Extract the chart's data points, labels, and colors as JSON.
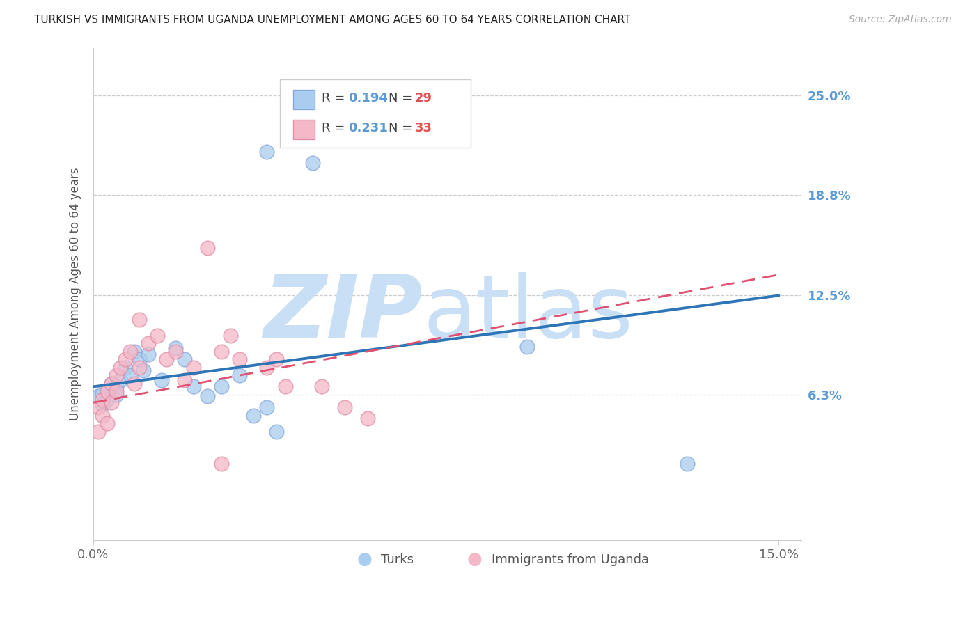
{
  "title": "TURKISH VS IMMIGRANTS FROM UGANDA UNEMPLOYMENT AMONG AGES 60 TO 64 YEARS CORRELATION CHART",
  "source": "Source: ZipAtlas.com",
  "ylabel": "Unemployment Among Ages 60 to 64 years",
  "xlim": [
    0.0,
    0.155
  ],
  "ylim": [
    -0.028,
    0.28
  ],
  "yticks": [
    0.063,
    0.125,
    0.188,
    0.25
  ],
  "ytick_labels": [
    "6.3%",
    "12.5%",
    "18.8%",
    "25.0%"
  ],
  "xtick_labels": [
    "0.0%",
    "15.0%"
  ],
  "grid_color": "#cccccc",
  "background_color": "#ffffff",
  "turks_color": "#aaccee",
  "turks_edge_color": "#88aadd",
  "uganda_color": "#f5b8c8",
  "uganda_edge_color": "#e090a8",
  "turks_R": "0.194",
  "turks_N": "29",
  "uganda_R": "0.231",
  "uganda_N": "33",
  "legend_label_turks": "Turks",
  "legend_label_uganda": "Immigrants from Uganda",
  "right_label_color": "#5b9bd5",
  "r_label_color": "#5b9bd5",
  "n_label_color": "#e05050",
  "turks_line_color": "#2e75b6",
  "uganda_line_color": "#e05070",
  "turks_x": [
    0.001,
    0.002,
    0.002,
    0.003,
    0.003,
    0.004,
    0.005,
    0.005,
    0.006,
    0.007,
    0.008,
    0.009,
    0.01,
    0.011,
    0.012,
    0.015,
    0.018,
    0.02,
    0.022,
    0.025,
    0.028,
    0.032,
    0.035,
    0.038,
    0.04,
    0.095,
    0.13,
    0.038,
    0.048
  ],
  "turks_y": [
    0.062,
    0.064,
    0.057,
    0.06,
    0.065,
    0.07,
    0.068,
    0.063,
    0.072,
    0.08,
    0.075,
    0.09,
    0.085,
    0.078,
    0.088,
    0.072,
    0.092,
    0.085,
    0.068,
    0.062,
    0.068,
    0.075,
    0.05,
    0.055,
    0.04,
    0.093,
    0.02,
    0.215,
    0.208
  ],
  "uganda_x": [
    0.001,
    0.001,
    0.002,
    0.002,
    0.003,
    0.003,
    0.004,
    0.004,
    0.005,
    0.005,
    0.006,
    0.007,
    0.008,
    0.009,
    0.01,
    0.012,
    0.014,
    0.016,
    0.018,
    0.02,
    0.022,
    0.025,
    0.028,
    0.03,
    0.032,
    0.038,
    0.04,
    0.042,
    0.05,
    0.055,
    0.06,
    0.028,
    0.01
  ],
  "uganda_y": [
    0.055,
    0.04,
    0.06,
    0.05,
    0.065,
    0.045,
    0.07,
    0.058,
    0.075,
    0.065,
    0.08,
    0.085,
    0.09,
    0.07,
    0.08,
    0.095,
    0.1,
    0.085,
    0.09,
    0.072,
    0.08,
    0.155,
    0.09,
    0.1,
    0.085,
    0.08,
    0.085,
    0.068,
    0.068,
    0.055,
    0.048,
    0.02,
    0.11
  ],
  "turks_trend_x": [
    0.0,
    0.15
  ],
  "turks_trend_y": [
    0.068,
    0.125
  ],
  "uganda_trend_x": [
    0.0,
    0.15
  ],
  "uganda_trend_y": [
    0.058,
    0.138
  ],
  "watermark_zip_color": "#c8dff5",
  "watermark_atlas_color": "#c8dff5"
}
